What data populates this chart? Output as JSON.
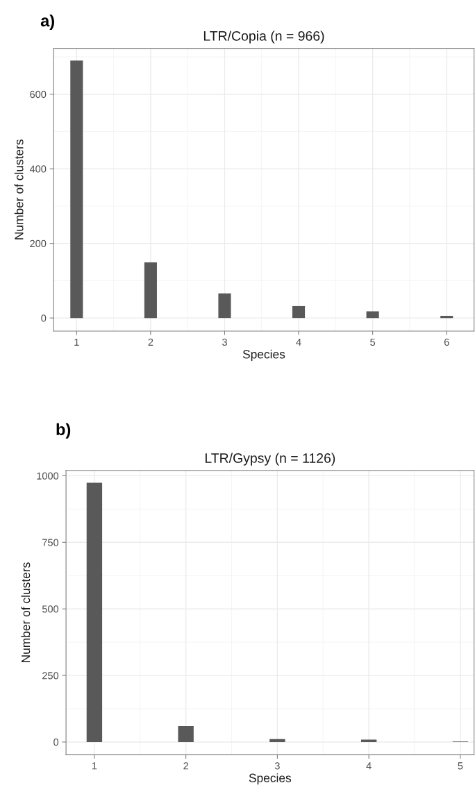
{
  "chart_data": [
    {
      "type": "bar",
      "title": "LTR/Copia (n = 966)",
      "xlabel": "Species",
      "ylabel": "Number of clusters",
      "annotations": [
        "a)"
      ],
      "x": [
        1,
        2,
        3,
        4,
        5,
        6
      ],
      "values": [
        690,
        149,
        66,
        32,
        18,
        6
      ],
      "color": "#595959",
      "xlim": [
        0.69,
        6.37
      ],
      "xticks": [
        1,
        2,
        3,
        4,
        5,
        6
      ],
      "ylim": [
        -35,
        723
      ],
      "yticks": [
        0,
        200,
        400,
        600
      ],
      "grid": true
    },
    {
      "type": "bar",
      "title": "LTR/Gypsy (n = 1126)",
      "xlabel": "Species",
      "ylabel": "Number of clusters",
      "annotations": [
        "b)"
      ],
      "x": [
        1,
        2,
        3,
        4,
        5
      ],
      "values": [
        974,
        60,
        11,
        9,
        2
      ],
      "color": "#595959",
      "xlim": [
        0.69,
        5.15
      ],
      "xticks": [
        1,
        2,
        3,
        4,
        5
      ],
      "ylim": [
        -48,
        1020
      ],
      "yticks": [
        0,
        250,
        500,
        750,
        1000
      ],
      "grid": true
    }
  ]
}
